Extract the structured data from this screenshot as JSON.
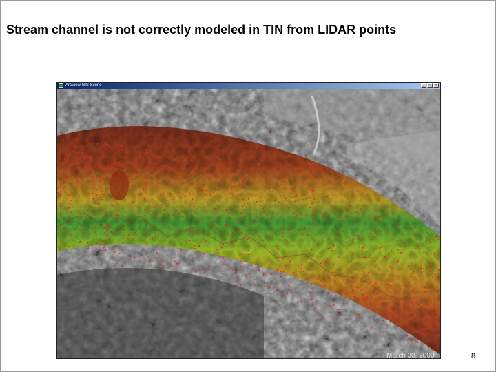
{
  "slide": {
    "title": "Stream channel is not correctly modeled in TIN from LIDAR points",
    "page_number": "8",
    "footer_date": "March 30, 2000"
  },
  "window": {
    "title": "ArcView GIS Scene",
    "icon": "app-icon",
    "buttons": [
      "minimize",
      "maximize",
      "close"
    ]
  },
  "image": {
    "subject": "TIN surface of stream channel draped over grayscale aerial photo with LIDAR points",
    "colors": {
      "tin_high": "#8b2a12",
      "tin_mid": "#c98a1c",
      "tin_yellow": "#b9c21e",
      "tin_green": "#3f9a2a",
      "lidar_points": "#e8231a",
      "aerial_light": "#9a9a9a",
      "aerial_dark": "#2e2e2e"
    }
  }
}
